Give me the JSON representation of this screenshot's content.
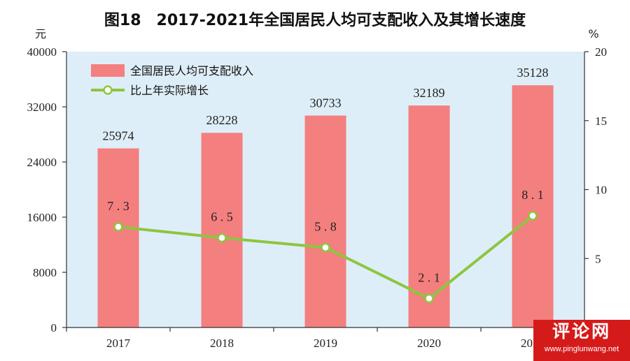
{
  "title": "图18　2017-2021年全国居民人均可支配收入及其增长速度",
  "chart_data": {
    "type": "bar",
    "categories": [
      "2017",
      "2018",
      "2019",
      "2020",
      "2021"
    ],
    "series": [
      {
        "name": "全国居民人均可支配收入",
        "type": "bar",
        "axis": "left",
        "color": "#f47f7f",
        "values": [
          25974,
          28228,
          30733,
          32189,
          35128
        ]
      },
      {
        "name": "比上年实际增长",
        "type": "line",
        "axis": "right",
        "color": "#8dc63f",
        "values": [
          7.3,
          6.5,
          5.8,
          2.1,
          8.1
        ]
      }
    ],
    "y_left": {
      "unit": "元",
      "min": 0,
      "max": 40000,
      "ticks": [
        0,
        8000,
        16000,
        24000,
        32000,
        40000
      ]
    },
    "y_right": {
      "unit": "%",
      "min": 0,
      "max": 20,
      "ticks": [
        5,
        10,
        15,
        20
      ]
    },
    "legend_position": "top-left",
    "plot_background": "#deeef8",
    "grid": false
  },
  "watermark": {
    "main": "评论网",
    "url": "www.pinglunwang.net"
  }
}
